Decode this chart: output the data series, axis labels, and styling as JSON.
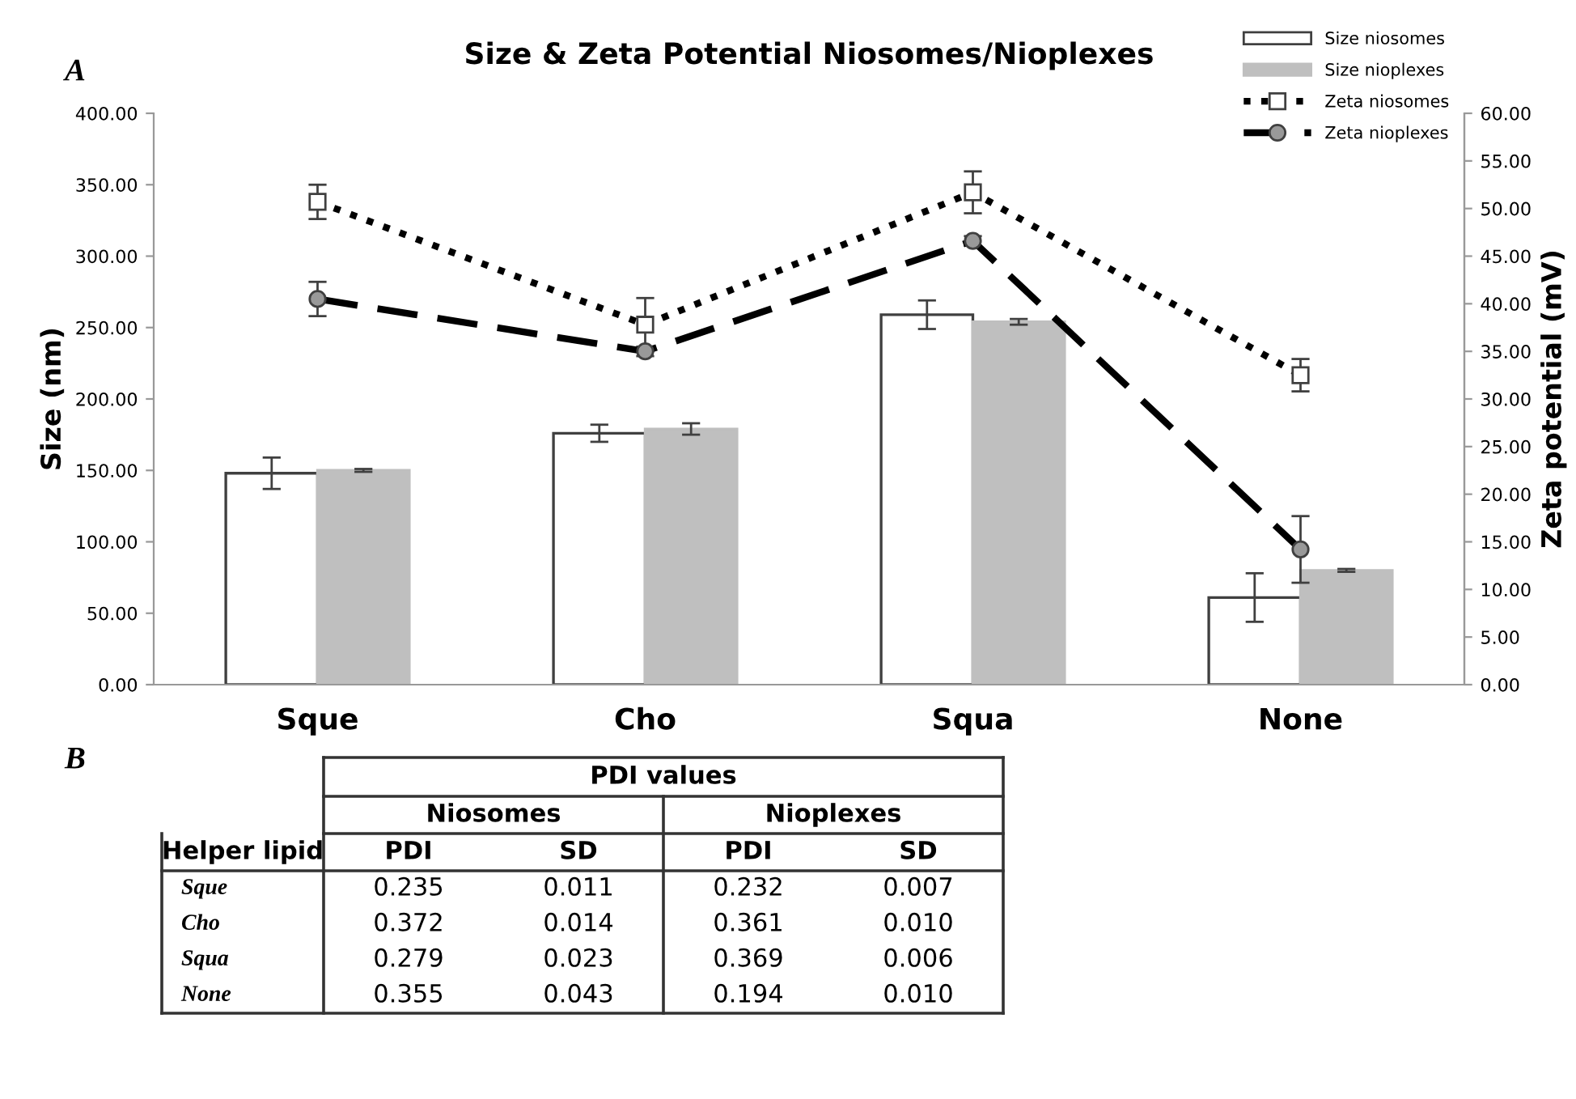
{
  "chart_data": [
    {
      "type": "bar",
      "title": "Size & Zeta Potential Niosomes/Nioplexes",
      "annotations": [
        "A"
      ],
      "ylabel": "Size (nm)",
      "y2label": "Zeta potential (mV)",
      "categories": [
        "Sque",
        "Cho",
        "Squa",
        "None"
      ],
      "series": [
        {
          "name": "Size niosomes",
          "type": "bar",
          "color": "#ffffff",
          "values": [
            148,
            176,
            259,
            61
          ],
          "errors": [
            11,
            6,
            10,
            17
          ]
        },
        {
          "name": "Size nioplexes",
          "type": "bar",
          "color": "#bfbfbf",
          "values": [
            150,
            179,
            254,
            80
          ],
          "errors": [
            1,
            4,
            2,
            1
          ]
        },
        {
          "name": "Zeta niosomes",
          "type": "line",
          "axis": "y2",
          "color": "#000000",
          "line_style": "dotted",
          "marker": "square",
          "values": [
            50.7,
            37.8,
            51.7,
            32.5
          ],
          "errors": [
            1.8,
            2.8,
            2.2,
            1.7
          ]
        },
        {
          "name": "Zeta nioplexes",
          "type": "line",
          "axis": "y2",
          "color": "#000000",
          "line_style": "dashed",
          "marker": "circle",
          "values": [
            40.5,
            35.0,
            46.6,
            14.2
          ],
          "errors": [
            1.8,
            0.5,
            0.5,
            3.5
          ]
        }
      ],
      "ylim": [
        0,
        400
      ],
      "yticks": [
        {
          "value": 0,
          "label": "0.00"
        },
        {
          "value": 50,
          "label": "50.00"
        },
        {
          "value": 100,
          "label": "100.00"
        },
        {
          "value": 150,
          "label": "150.00"
        },
        {
          "value": 200,
          "label": "200.00"
        },
        {
          "value": 250,
          "label": "250.00"
        },
        {
          "value": 300,
          "label": "300.00"
        },
        {
          "value": 350,
          "label": "350.00"
        },
        {
          "value": 400,
          "label": "400.00"
        }
      ],
      "y2lim": [
        0,
        60
      ],
      "y2ticks": [
        {
          "value": 0,
          "label": "0.00"
        },
        {
          "value": 5,
          "label": "5.00"
        },
        {
          "value": 10,
          "label": "10.00"
        },
        {
          "value": 15,
          "label": "15.00"
        },
        {
          "value": 20,
          "label": "20.00"
        },
        {
          "value": 25,
          "label": "25.00"
        },
        {
          "value": 30,
          "label": "30.00"
        },
        {
          "value": 35,
          "label": "35.00"
        },
        {
          "value": 40,
          "label": "40.00"
        },
        {
          "value": 45,
          "label": "45.00"
        },
        {
          "value": 50,
          "label": "50.00"
        },
        {
          "value": 55,
          "label": "55.00"
        },
        {
          "value": 60,
          "label": "60.00"
        }
      ],
      "grid": false,
      "legend": "top right"
    },
    {
      "type": "heatmap",
      "title": "PDI values",
      "annotations": [
        "B",
        "Helper lipid",
        "Niosomes",
        "Nioplexes"
      ],
      "categories": [
        "PDI",
        "SD",
        "PDI",
        "SD"
      ],
      "y_categories": [
        "Sque",
        "Cho",
        "Squa",
        "None"
      ],
      "cells": [
        [
          0.235,
          0.011,
          0.232,
          0.007
        ],
        [
          0.372,
          0.014,
          0.361,
          0.01
        ],
        [
          0.279,
          0.023,
          0.369,
          0.006
        ],
        [
          0.355,
          0.043,
          0.194,
          0.01
        ]
      ],
      "cell_labels": [
        [
          "0.235",
          "0.011",
          "0.232",
          "0.007"
        ],
        [
          "0.372",
          "0.014",
          "0.361",
          "0.010"
        ],
        [
          "0.279",
          "0.023",
          "0.369",
          "0.006"
        ],
        [
          "0.355",
          "0.043",
          "0.194",
          "0.010"
        ]
      ]
    }
  ]
}
